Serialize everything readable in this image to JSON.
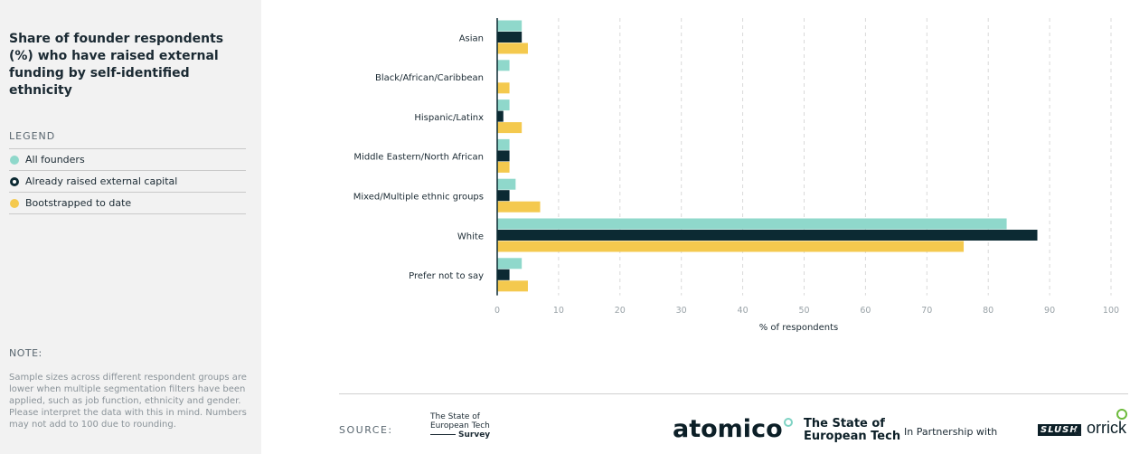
{
  "sidebar": {
    "title": "Share of founder respondents (%) who have raised external funding by self-identified ethnicity",
    "legend_label": "LEGEND",
    "legend": [
      {
        "label": "All founders",
        "color": "#8fd8cb"
      },
      {
        "label": "Already raised external capital",
        "color": "#0c2a33"
      },
      {
        "label": "Bootstrapped to date",
        "color": "#f4c94e"
      }
    ],
    "note_label": "NOTE:",
    "note_text": "Sample sizes across different respondent groups are lower when multiple segmentation filters have been applied, such as job function, ethnicity and gender. Please interpret the data with this in mind. Numbers may not add to 100 due to rounding."
  },
  "footer": {
    "source_label": "SOURCE:",
    "survey_line1": "The State of",
    "survey_line2": "European Tech",
    "survey_line3": "Survey",
    "atomico": "atomico",
    "soet_line1": "The State of",
    "soet_line2": "European Tech",
    "partner_text": "In Partnership with",
    "slush": "SLUSH",
    "amp": "&",
    "orrick": "orrick"
  },
  "chart_data": {
    "type": "bar",
    "orientation": "horizontal",
    "categories": [
      "Asian",
      "Black/African/Caribbean",
      "Hispanic/Latinx",
      "Middle Eastern/North African",
      "Mixed/Multiple ethnic groups",
      "White",
      "Prefer not to say"
    ],
    "series": [
      {
        "name": "All founders",
        "color": "#8fd8cb",
        "values": [
          4,
          2,
          2,
          2,
          3,
          83,
          4
        ]
      },
      {
        "name": "Already raised external capital",
        "color": "#0c2a33",
        "values": [
          4,
          0,
          1,
          2,
          2,
          88,
          2
        ]
      },
      {
        "name": "Bootstrapped to date",
        "color": "#f4c94e",
        "values": [
          5,
          2,
          4,
          2,
          7,
          76,
          5
        ]
      }
    ],
    "xlabel": "% of respondents",
    "xlim": [
      0,
      100
    ],
    "xticks": [
      0,
      10,
      20,
      30,
      40,
      50,
      60,
      70,
      80,
      90,
      100
    ],
    "grid": true,
    "legend_position": "left-sidebar"
  }
}
